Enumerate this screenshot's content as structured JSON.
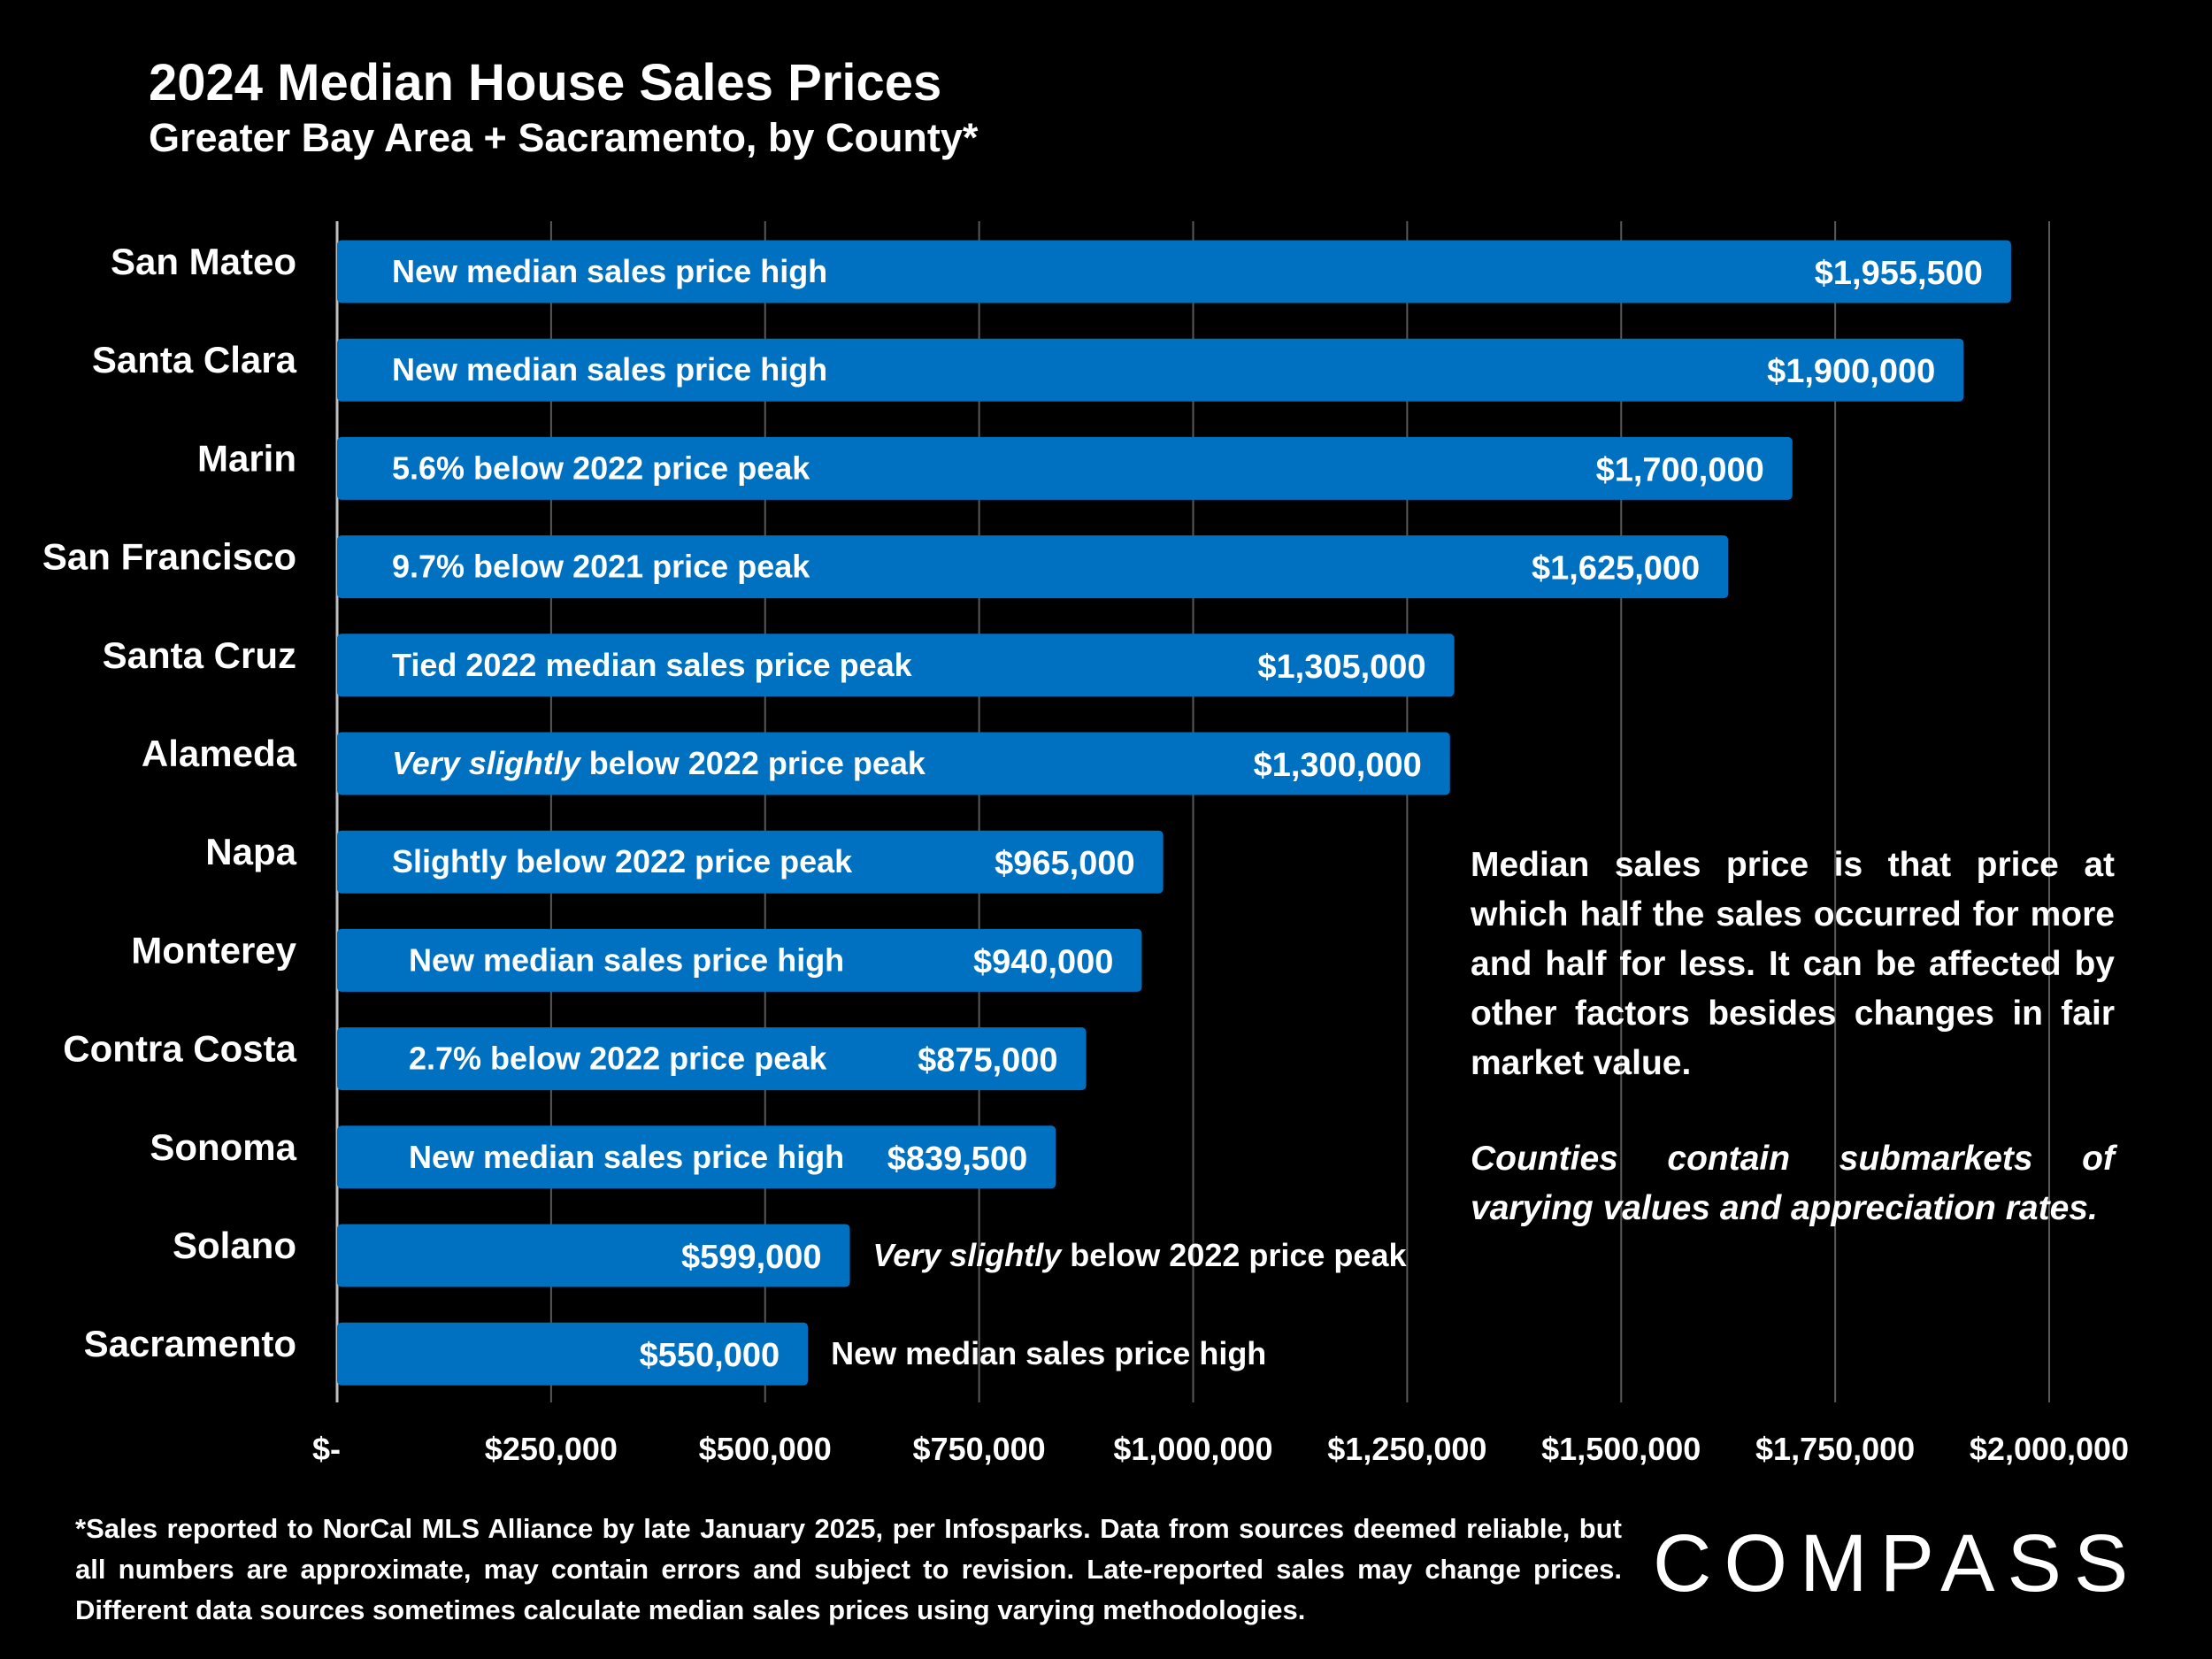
{
  "title": "2024 Median House Sales Prices",
  "subtitle": "Greater Bay Area + Sacramento, by County*",
  "colors": {
    "bar": "#0070c0",
    "grid": "#595959",
    "background": "#000000",
    "text": "#ffffff"
  },
  "chart_data": {
    "type": "bar",
    "orientation": "horizontal",
    "categories": [
      "San Mateo",
      "Santa Clara",
      "Marin",
      "San Francisco",
      "Santa Cruz",
      "Alameda",
      "Napa",
      "Monterey",
      "Contra Costa",
      "Sonoma",
      "Solano",
      "Sacramento"
    ],
    "values": [
      1955500,
      1900000,
      1700000,
      1625000,
      1305000,
      1300000,
      965000,
      940000,
      875000,
      839500,
      599000,
      550000
    ],
    "value_labels": [
      "$1,955,500",
      "$1,900,000",
      "$1,700,000",
      "$1,625,000",
      "$1,305,000",
      "$1,300,000",
      "$965,000",
      "$940,000",
      "$875,000",
      "$839,500",
      "$599,000",
      "$550,000"
    ],
    "annotations": [
      {
        "italic": "",
        "text": "New median sales price high",
        "placement": "inside"
      },
      {
        "italic": "",
        "text": "New median sales price high",
        "placement": "inside"
      },
      {
        "italic": "",
        "text": "5.6% below 2022 price peak",
        "placement": "inside"
      },
      {
        "italic": "",
        "text": "9.7% below 2021 price peak",
        "placement": "inside"
      },
      {
        "italic": "",
        "text": "Tied 2022 median sales price peak",
        "placement": "inside"
      },
      {
        "italic": "Very slightly",
        "text": " below 2022 price peak",
        "placement": "inside"
      },
      {
        "italic": "",
        "text": "Slightly below 2022 price peak",
        "placement": "inside"
      },
      {
        "italic": "",
        "text": "New median sales price high",
        "placement": "inside"
      },
      {
        "italic": "",
        "text": "2.7% below 2022 price peak",
        "placement": "inside"
      },
      {
        "italic": "",
        "text": "New median sales price high",
        "placement": "inside"
      },
      {
        "italic": "Very slightly",
        "text": " below 2022 price peak",
        "placement": "outside"
      },
      {
        "italic": "",
        "text": "New median sales price high",
        "placement": "outside"
      }
    ],
    "xlim": [
      0,
      2000000
    ],
    "ticks": [
      0,
      250000,
      500000,
      750000,
      1000000,
      1250000,
      1500000,
      1750000,
      2000000
    ],
    "tick_labels": [
      "$-",
      "$250,000",
      "$500,000",
      "$750,000",
      "$1,000,000",
      "$1,250,000",
      "$1,500,000",
      "$1,750,000",
      "$2,000,000"
    ],
    "grid": true
  },
  "note": {
    "definition": "Median sales price is that price at which half the sales occurred for more and half for less. It can be affected by other factors besides changes in fair market value.",
    "counties": "Counties contain submarkets of varying values and appreciation rates."
  },
  "footnote": "*Sales reported to NorCal MLS Alliance by late January 2025, per Infosparks. Data from sources deemed reliable, but all numbers are approximate, may contain errors and subject to revision. Late-reported sales may change prices. Different data sources sometimes calculate median sales prices using varying methodologies.",
  "logo": "COMPASS"
}
